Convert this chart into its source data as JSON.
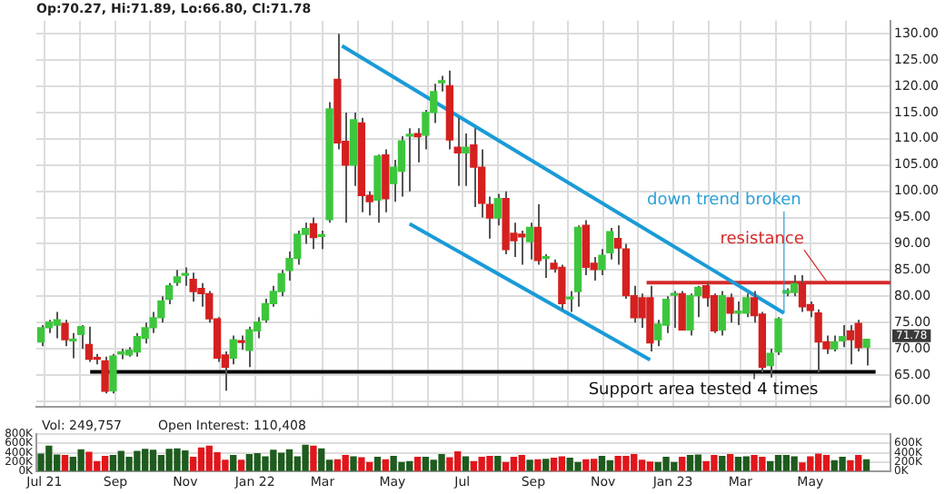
{
  "chart_data": [
    {
      "type": "candlestick",
      "title": "Op:70.27, Hi:71.89, Lo:66.80, Cl:71.78",
      "x": [
        "2021-06-28",
        "2021-07-05",
        "2021-07-12",
        "2021-07-19",
        "2021-07-26",
        "2021-08-02",
        "2021-08-09",
        "2021-08-16",
        "2021-08-23",
        "2021-08-30",
        "2021-09-06",
        "2021-09-13",
        "2021-09-20",
        "2021-09-27",
        "2021-10-04",
        "2021-10-11",
        "2021-10-18",
        "2021-10-25",
        "2021-11-01",
        "2021-11-08",
        "2021-11-15",
        "2021-11-22",
        "2021-11-29",
        "2021-12-06",
        "2021-12-13",
        "2021-12-20",
        "2021-12-27",
        "2022-01-03",
        "2022-01-10",
        "2022-01-17",
        "2022-01-24",
        "2022-01-31",
        "2022-02-07",
        "2022-02-14",
        "2022-02-21",
        "2022-02-28",
        "2022-03-07",
        "2022-03-14",
        "2022-03-21",
        "2022-03-28",
        "2022-04-04",
        "2022-04-11",
        "2022-04-18",
        "2022-04-25",
        "2022-05-02",
        "2022-05-09",
        "2022-05-16",
        "2022-05-23",
        "2022-05-30",
        "2022-06-06",
        "2022-06-13",
        "2022-06-20",
        "2022-06-27",
        "2022-07-04",
        "2022-07-11",
        "2022-07-18",
        "2022-07-25",
        "2022-08-01",
        "2022-08-08",
        "2022-08-15",
        "2022-08-22",
        "2022-08-29",
        "2022-09-05",
        "2022-09-12",
        "2022-09-19",
        "2022-09-26",
        "2022-10-03",
        "2022-10-10",
        "2022-10-17",
        "2022-10-24",
        "2022-10-31",
        "2022-11-07",
        "2022-11-14",
        "2022-11-21",
        "2022-11-28",
        "2022-12-05",
        "2022-12-12",
        "2022-12-19",
        "2022-12-26",
        "2023-01-02",
        "2023-01-09",
        "2023-01-16",
        "2023-01-23",
        "2023-01-30",
        "2023-02-06",
        "2023-02-13",
        "2023-02-20",
        "2023-02-27",
        "2023-03-06",
        "2023-03-13",
        "2023-03-20",
        "2023-03-27",
        "2023-04-03",
        "2023-04-10",
        "2023-04-17",
        "2023-04-24",
        "2023-05-01",
        "2023-05-08",
        "2023-05-15",
        "2023-05-22",
        "2023-05-29",
        "2023-06-05",
        "2023-06-12",
        "2023-06-19"
      ],
      "ohlc": [
        [
          71.3,
          74.5,
          70.5,
          74.0
        ],
        [
          74.0,
          75.5,
          73,
          75.1
        ],
        [
          74.5,
          77,
          72,
          75.5
        ],
        [
          74.8,
          75.5,
          70.5,
          71.7
        ],
        [
          71.5,
          73,
          68.2,
          71.8
        ],
        [
          72.7,
          74.5,
          70,
          74.2
        ],
        [
          70.8,
          74.2,
          67.5,
          68.0
        ],
        [
          68.3,
          69,
          67,
          68.0
        ],
        [
          67.7,
          68.5,
          61.5,
          61.9
        ],
        [
          62.0,
          69,
          61.5,
          68.6
        ],
        [
          69,
          70,
          68,
          69.4
        ],
        [
          68.8,
          70.3,
          68.5,
          69.7
        ],
        [
          69.4,
          73,
          68.5,
          72.3
        ],
        [
          72,
          75,
          71,
          74
        ],
        [
          74,
          77,
          73,
          75.9
        ],
        [
          75.9,
          80,
          75,
          79.1
        ],
        [
          79.4,
          82.5,
          78.5,
          82
        ],
        [
          82.6,
          85,
          82,
          83.7
        ],
        [
          84,
          85.5,
          82,
          84.3
        ],
        [
          83.2,
          84.5,
          79,
          80.9
        ],
        [
          81.5,
          82.5,
          78,
          80.5
        ],
        [
          80.5,
          81,
          75,
          75.7
        ],
        [
          75.7,
          76,
          67.5,
          68.2
        ],
        [
          68.8,
          69.5,
          62,
          66.5
        ],
        [
          68.2,
          72.5,
          67,
          71.7
        ],
        [
          71.5,
          72.5,
          69.8,
          71.2
        ],
        [
          69.7,
          74.2,
          66.5,
          73.6
        ],
        [
          73.4,
          76,
          72,
          75.1
        ],
        [
          75.5,
          79.5,
          75,
          78.6
        ],
        [
          78.6,
          82,
          78,
          80.9
        ],
        [
          80.9,
          85,
          80,
          84.3
        ],
        [
          84.9,
          88.5,
          83,
          87.2
        ],
        [
          87.2,
          92.5,
          86,
          91.8
        ],
        [
          91.8,
          94,
          90,
          92.9
        ],
        [
          93.8,
          95,
          89,
          91.2
        ],
        [
          91.4,
          92.5,
          89,
          91.6
        ],
        [
          94.6,
          117,
          94,
          115.7
        ],
        [
          121.3,
          130,
          108,
          109.2
        ],
        [
          109.5,
          115,
          94,
          105
        ],
        [
          105,
          115,
          101,
          113.6
        ],
        [
          113,
          114,
          96,
          99.2
        ],
        [
          99.2,
          100,
          95.4,
          98
        ],
        [
          98.3,
          107,
          94,
          106.7
        ],
        [
          106.9,
          108,
          96,
          98.6
        ],
        [
          101.5,
          106,
          98,
          104.6
        ],
        [
          103.8,
          110.5,
          99,
          109.6
        ],
        [
          110.5,
          112,
          100,
          110.7
        ],
        [
          111,
          112,
          105.5,
          110.4
        ],
        [
          110.7,
          115.5,
          108,
          115
        ],
        [
          115,
          120.5,
          113,
          119
        ],
        [
          120.7,
          122,
          119,
          120.8
        ],
        [
          120.1,
          123,
          108,
          109.8
        ],
        [
          108.4,
          114,
          101,
          107.3
        ],
        [
          107.3,
          111,
          101,
          108.4
        ],
        [
          108.8,
          112,
          97,
          104.6
        ],
        [
          104.6,
          108,
          95,
          97.7
        ],
        [
          97.5,
          99,
          91,
          94.9
        ],
        [
          94.9,
          99.5,
          93.5,
          98.6
        ],
        [
          98.6,
          100,
          88,
          88.9
        ],
        [
          92,
          94,
          87.5,
          90.6
        ],
        [
          91.8,
          92.5,
          86,
          91.3
        ],
        [
          90.4,
          94,
          87,
          93.1
        ],
        [
          93.1,
          97.5,
          86,
          86.8
        ],
        [
          87.2,
          88,
          83.5,
          87.3
        ],
        [
          86.3,
          87,
          84.5,
          85.2
        ],
        [
          85.5,
          86,
          77.5,
          78.6
        ],
        [
          79.5,
          81,
          77,
          79.6
        ],
        [
          80.9,
          93.5,
          78,
          93.1
        ],
        [
          93.5,
          94.5,
          84,
          85.5
        ],
        [
          86.3,
          87.5,
          83,
          85.1
        ],
        [
          85.1,
          89,
          84,
          87.8
        ],
        [
          88.3,
          93,
          87,
          92.3
        ],
        [
          91,
          93.5,
          86,
          89.2
        ],
        [
          89,
          90,
          79.5,
          80.1
        ],
        [
          80.1,
          82,
          75,
          75.9
        ],
        [
          79.7,
          80.5,
          74,
          75.9
        ],
        [
          79.7,
          82,
          69.5,
          71.1
        ],
        [
          71.7,
          75.5,
          70.5,
          74.7
        ],
        [
          74.5,
          80,
          73,
          79.4
        ],
        [
          80.2,
          81,
          74,
          80.4
        ],
        [
          80.5,
          81,
          73.5,
          73.6
        ],
        [
          73.6,
          80.5,
          72.5,
          80.1
        ],
        [
          80.1,
          82,
          76,
          81.7
        ],
        [
          82,
          82.5,
          78,
          79.7
        ],
        [
          80.1,
          80.5,
          73,
          73.4
        ],
        [
          73.6,
          81,
          72.5,
          80.1
        ],
        [
          79.7,
          80.5,
          75,
          76.8
        ],
        [
          76.8,
          79,
          74.5,
          76.9
        ],
        [
          76.8,
          80.5,
          76,
          79.7
        ],
        [
          79.7,
          81,
          75,
          76.3
        ],
        [
          76.6,
          77,
          65.5,
          66.5
        ],
        [
          66.8,
          70,
          64.5,
          69.1
        ],
        [
          69.4,
          76,
          68.8,
          75.7
        ],
        [
          80.6,
          81.5,
          80,
          81.1
        ],
        [
          80.7,
          84,
          80,
          82.4
        ],
        [
          82.4,
          84,
          77,
          78
        ],
        [
          78.4,
          79,
          76,
          77.3
        ],
        [
          76.8,
          77.5,
          65.5,
          71.3
        ],
        [
          71.3,
          72.5,
          69,
          70
        ],
        [
          70,
          72.5,
          69.5,
          71.3
        ],
        [
          71.5,
          74.5,
          70.3,
          72.3
        ],
        [
          73.4,
          74.5,
          67,
          71.7
        ],
        [
          74.8,
          75.5,
          69.5,
          70.2
        ],
        [
          70.27,
          71.89,
          66.8,
          71.78
        ]
      ],
      "colors": [
        "#3dc63d",
        "#3dc63d",
        "#3dc63d",
        "#d4201f",
        "#3dc63d",
        "#3dc63d",
        "#d4201f",
        "#d4201f",
        "#d4201f",
        "#3dc63d",
        "#3dc63d",
        "#3dc63d",
        "#3dc63d",
        "#3dc63d",
        "#3dc63d",
        "#3dc63d",
        "#3dc63d",
        "#3dc63d",
        "#3dc63d",
        "#d4201f",
        "#d4201f",
        "#d4201f",
        "#d4201f",
        "#d4201f",
        "#3dc63d",
        "#d4201f",
        "#3dc63d",
        "#3dc63d",
        "#3dc63d",
        "#3dc63d",
        "#3dc63d",
        "#3dc63d",
        "#3dc63d",
        "#3dc63d",
        "#d4201f",
        "#3dc63d",
        "#3dc63d",
        "#d4201f",
        "#d4201f",
        "#3dc63d",
        "#d4201f",
        "#d4201f",
        "#3dc63d",
        "#d4201f",
        "#3dc63d",
        "#3dc63d",
        "#3dc63d",
        "#d4201f",
        "#3dc63d",
        "#3dc63d",
        "#3dc63d",
        "#d4201f",
        "#d4201f",
        "#3dc63d",
        "#d4201f",
        "#d4201f",
        "#d4201f",
        "#3dc63d",
        "#d4201f",
        "#d4201f",
        "#d4201f",
        "#3dc63d",
        "#d4201f",
        "#3dc63d",
        "#d4201f",
        "#d4201f",
        "#3dc63d",
        "#3dc63d",
        "#d4201f",
        "#d4201f",
        "#3dc63d",
        "#3dc63d",
        "#d4201f",
        "#d4201f",
        "#d4201f",
        "#d4201f",
        "#d4201f",
        "#3dc63d",
        "#3dc63d",
        "#3dc63d",
        "#d4201f",
        "#3dc63d",
        "#3dc63d",
        "#d4201f",
        "#d4201f",
        "#3dc63d",
        "#d4201f",
        "#3dc63d",
        "#3dc63d",
        "#d4201f",
        "#d4201f",
        "#3dc63d",
        "#3dc63d",
        "#3dc63d",
        "#3dc63d",
        "#d4201f",
        "#d4201f",
        "#d4201f",
        "#d4201f",
        "#3dc63d",
        "#3dc63d",
        "#d4201f",
        "#d4201f",
        "#3dc63d"
      ],
      "series": [
        {
          "type": "line",
          "x": [
            "2022-03-18",
            "2023-04-08"
          ],
          "values": [
            127.7,
            76.8
          ],
          "color": "#1a9bd7"
        },
        {
          "type": "line",
          "x": [
            "2022-05-16",
            "2022-12-12"
          ],
          "values": [
            93.8,
            67.9
          ],
          "color": "#1a9bd7"
        },
        {
          "type": "line",
          "x": [
            "2021-08-10",
            "2023-06-27"
          ],
          "values": [
            65.6,
            65.6
          ],
          "color": "#000000"
        },
        {
          "type": "line",
          "x": [
            "2022-12-09",
            "2023-07-10"
          ],
          "values": [
            82.6,
            82.6
          ],
          "color": "#d42a2a"
        }
      ],
      "xlim": [
        "2021-06-24",
        "2023-07-10"
      ],
      "xticks": [
        {
          "value": "2021-07-01",
          "label": null
        },
        {
          "value": "2021-08-01",
          "label": null
        },
        {
          "value": "2021-09-01",
          "label": null
        },
        {
          "value": "2021-10-01",
          "label": null
        },
        {
          "value": "2021-11-01",
          "label": null
        },
        {
          "value": "2021-12-01",
          "label": null
        },
        {
          "value": "2022-01-01",
          "label": null
        },
        {
          "value": "2022-02-01",
          "label": null
        },
        {
          "value": "2022-03-01",
          "label": null
        },
        {
          "value": "2022-04-01",
          "label": null
        },
        {
          "value": "2022-05-01",
          "label": null
        },
        {
          "value": "2022-06-01",
          "label": null
        },
        {
          "value": "2022-07-01",
          "label": null
        },
        {
          "value": "2022-08-01",
          "label": null
        },
        {
          "value": "2022-09-01",
          "label": null
        },
        {
          "value": "2022-10-01",
          "label": null
        },
        {
          "value": "2022-11-01",
          "label": null
        },
        {
          "value": "2022-12-01",
          "label": null
        },
        {
          "value": "2023-01-01",
          "label": null
        },
        {
          "value": "2023-02-01",
          "label": null
        },
        {
          "value": "2023-03-01",
          "label": null
        },
        {
          "value": "2023-04-01",
          "label": null
        },
        {
          "value": "2023-05-01",
          "label": null
        },
        {
          "value": "2023-06-01",
          "label": null
        }
      ],
      "ylim": [
        59,
        132.5
      ],
      "yticks": [
        {
          "value": 60,
          "label": "60.00"
        },
        {
          "value": 65,
          "label": "65.00"
        },
        {
          "value": 70,
          "label": "70.00"
        },
        {
          "value": 75,
          "label": "75.00"
        },
        {
          "value": 80,
          "label": "80.00"
        },
        {
          "value": 85,
          "label": "85.00"
        },
        {
          "value": 90,
          "label": "90.00"
        },
        {
          "value": 95,
          "label": "95.00"
        },
        {
          "value": 100,
          "label": "100.00"
        },
        {
          "value": 105,
          "label": "105.00"
        },
        {
          "value": 110,
          "label": "110.00"
        },
        {
          "value": 115,
          "label": "115.00"
        },
        {
          "value": 120,
          "label": "120.00"
        },
        {
          "value": 125,
          "label": "125.00"
        },
        {
          "value": 130,
          "label": "130.00"
        }
      ],
      "grid": true,
      "tick_labels": "y",
      "annotations": [
        {
          "text": "down trend broken",
          "x": "2023-04-08",
          "y": 76.8
        },
        {
          "text": "resistance",
          "x": "2023-05-16",
          "y": 82.6
        },
        {
          "text": "Support area tested 4 times",
          "x": "2023-03-13",
          "y": 65.6
        },
        "71.78"
      ]
    },
    {
      "type": "bar",
      "x": [
        "2021-06-28",
        "2021-07-05",
        "2021-07-12",
        "2021-07-19",
        "2021-07-26",
        "2021-08-02",
        "2021-08-09",
        "2021-08-16",
        "2021-08-23",
        "2021-08-30",
        "2021-09-06",
        "2021-09-13",
        "2021-09-20",
        "2021-09-27",
        "2021-10-04",
        "2021-10-11",
        "2021-10-18",
        "2021-10-25",
        "2021-11-01",
        "2021-11-08",
        "2021-11-15",
        "2021-11-22",
        "2021-11-29",
        "2021-12-06",
        "2021-12-13",
        "2021-12-20",
        "2021-12-27",
        "2022-01-03",
        "2022-01-10",
        "2022-01-17",
        "2022-01-24",
        "2022-01-31",
        "2022-02-07",
        "2022-02-14",
        "2022-02-21",
        "2022-02-28",
        "2022-03-07",
        "2022-03-14",
        "2022-03-21",
        "2022-03-28",
        "2022-04-04",
        "2022-04-11",
        "2022-04-18",
        "2022-04-25",
        "2022-05-02",
        "2022-05-09",
        "2022-05-16",
        "2022-05-23",
        "2022-05-30",
        "2022-06-06",
        "2022-06-13",
        "2022-06-20",
        "2022-06-27",
        "2022-07-04",
        "2022-07-11",
        "2022-07-18",
        "2022-07-25",
        "2022-08-01",
        "2022-08-08",
        "2022-08-15",
        "2022-08-22",
        "2022-08-29",
        "2022-09-05",
        "2022-09-12",
        "2022-09-19",
        "2022-09-26",
        "2022-10-03",
        "2022-10-10",
        "2022-10-17",
        "2022-10-24",
        "2022-10-31",
        "2022-11-07",
        "2022-11-14",
        "2022-11-21",
        "2022-11-28",
        "2022-12-05",
        "2022-12-12",
        "2022-12-19",
        "2022-12-26",
        "2023-01-02",
        "2023-01-09",
        "2023-01-16",
        "2023-01-23",
        "2023-01-30",
        "2023-02-06",
        "2023-02-13",
        "2023-02-20",
        "2023-02-27",
        "2023-03-06",
        "2023-03-13",
        "2023-03-20",
        "2023-03-27",
        "2023-04-03",
        "2023-04-10",
        "2023-04-17",
        "2023-04-24",
        "2023-05-01",
        "2023-05-08",
        "2023-05-15",
        "2023-05-22",
        "2023-05-29",
        "2023-06-05",
        "2023-06-12",
        "2023-06-19"
      ],
      "values": [
        370000,
        540000,
        350000,
        340000,
        300000,
        460000,
        410000,
        210000,
        320000,
        340000,
        430000,
        300000,
        430000,
        470000,
        450000,
        340000,
        470000,
        480000,
        440000,
        300000,
        500000,
        540000,
        400000,
        240000,
        340000,
        240000,
        360000,
        380000,
        310000,
        450000,
        390000,
        460000,
        310000,
        560000,
        540000,
        480000,
        240000,
        250000,
        340000,
        310000,
        290000,
        190000,
        300000,
        250000,
        320000,
        190000,
        210000,
        300000,
        300000,
        240000,
        360000,
        290000,
        420000,
        310000,
        210000,
        300000,
        320000,
        320000,
        190000,
        300000,
        340000,
        240000,
        250000,
        260000,
        280000,
        310000,
        280000,
        190000,
        250000,
        260000,
        320000,
        230000,
        320000,
        320000,
        360000,
        240000,
        200000,
        190000,
        300000,
        190000,
        300000,
        340000,
        350000,
        210000,
        340000,
        320000,
        360000,
        300000,
        310000,
        340000,
        300000,
        210000,
        340000,
        340000,
        310000,
        180000,
        310000,
        370000,
        340000,
        230000,
        300000,
        230000,
        340000,
        250000
      ],
      "colors": [
        "#1e5b1e",
        "#1e5b1e",
        "#1e5b1e",
        "#e0161b",
        "#1e5b1e",
        "#1e5b1e",
        "#e0161b",
        "#e0161b",
        "#e0161b",
        "#1e5b1e",
        "#1e5b1e",
        "#1e5b1e",
        "#1e5b1e",
        "#1e5b1e",
        "#1e5b1e",
        "#1e5b1e",
        "#1e5b1e",
        "#1e5b1e",
        "#1e5b1e",
        "#e0161b",
        "#e0161b",
        "#e0161b",
        "#e0161b",
        "#e0161b",
        "#1e5b1e",
        "#e0161b",
        "#1e5b1e",
        "#1e5b1e",
        "#1e5b1e",
        "#1e5b1e",
        "#1e5b1e",
        "#1e5b1e",
        "#1e5b1e",
        "#1e5b1e",
        "#e0161b",
        "#1e5b1e",
        "#1e5b1e",
        "#e0161b",
        "#e0161b",
        "#1e5b1e",
        "#e0161b",
        "#e0161b",
        "#1e5b1e",
        "#e0161b",
        "#1e5b1e",
        "#1e5b1e",
        "#1e5b1e",
        "#e0161b",
        "#1e5b1e",
        "#1e5b1e",
        "#1e5b1e",
        "#e0161b",
        "#e0161b",
        "#1e5b1e",
        "#e0161b",
        "#e0161b",
        "#e0161b",
        "#1e5b1e",
        "#e0161b",
        "#e0161b",
        "#e0161b",
        "#1e5b1e",
        "#e0161b",
        "#1e5b1e",
        "#e0161b",
        "#e0161b",
        "#1e5b1e",
        "#1e5b1e",
        "#e0161b",
        "#e0161b",
        "#1e5b1e",
        "#1e5b1e",
        "#e0161b",
        "#e0161b",
        "#e0161b",
        "#e0161b",
        "#e0161b",
        "#1e5b1e",
        "#1e5b1e",
        "#1e5b1e",
        "#e0161b",
        "#1e5b1e",
        "#1e5b1e",
        "#e0161b",
        "#e0161b",
        "#1e5b1e",
        "#e0161b",
        "#1e5b1e",
        "#1e5b1e",
        "#e0161b",
        "#e0161b",
        "#1e5b1e",
        "#1e5b1e",
        "#1e5b1e",
        "#1e5b1e",
        "#e0161b",
        "#e0161b",
        "#e0161b",
        "#e0161b",
        "#1e5b1e",
        "#1e5b1e",
        "#e0161b",
        "#e0161b",
        "#1e5b1e"
      ],
      "xlim": [
        "2021-06-24",
        "2023-07-10"
      ],
      "xticks": [
        {
          "value": "2021-07-01",
          "label": "Jul 21"
        },
        {
          "value": "2021-09-01",
          "label": "Sep"
        },
        {
          "value": "2021-11-01",
          "label": "Nov"
        },
        {
          "value": "2022-01-01",
          "label": "Jan 22"
        },
        {
          "value": "2022-03-01",
          "label": "Mar"
        },
        {
          "value": "2022-05-01",
          "label": "May"
        },
        {
          "value": "2022-07-01",
          "label": "Jul"
        },
        {
          "value": "2022-09-01",
          "label": "Sep"
        },
        {
          "value": "2022-11-01",
          "label": "Nov"
        },
        {
          "value": "2023-01-01",
          "label": "Jan 23"
        },
        {
          "value": "2023-03-01",
          "label": "Mar"
        },
        {
          "value": "2023-05-01",
          "label": "May"
        }
      ],
      "ylim": [
        0,
        800000
      ],
      "yticks": [
        {
          "value": 0,
          "label": "0K"
        },
        {
          "value": 200000,
          "label": "200K"
        },
        {
          "value": 400000,
          "label": "400K"
        },
        {
          "value": 600000,
          "label": "600K"
        },
        {
          "value": 800000,
          "label": "800K"
        }
      ],
      "y2lim": [
        0,
        800000
      ],
      "y2ticks": [
        {
          "value": 0,
          "label": "0K"
        },
        {
          "value": 200000,
          "label": "200K"
        },
        {
          "value": 400000,
          "label": "400K"
        },
        {
          "value": 600000,
          "label": "600K"
        }
      ],
      "grid": "y",
      "annotations": [
        "Vol: 249,757",
        "Open Interest: 110,408"
      ]
    }
  ]
}
